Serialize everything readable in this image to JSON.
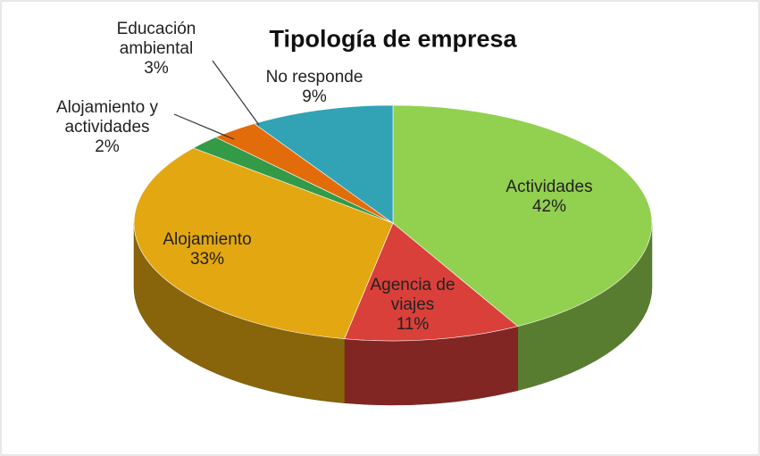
{
  "chart_data": {
    "type": "pie",
    "title": "Tipología de empresa",
    "categories": [
      "Actividades",
      "Agencia de viajes",
      "Alojamiento",
      "Alojamiento y actividades",
      "Educación ambiental",
      "No responde"
    ],
    "values": [
      42,
      11,
      33,
      2,
      3,
      9
    ],
    "value_labels": [
      "42%",
      "11%",
      "33%",
      "2%",
      "3%",
      "9%"
    ],
    "colors": [
      "#92d050",
      "#d9403a",
      "#e3a712",
      "#339a48",
      "#e36c0a",
      "#31a3b5"
    ]
  }
}
